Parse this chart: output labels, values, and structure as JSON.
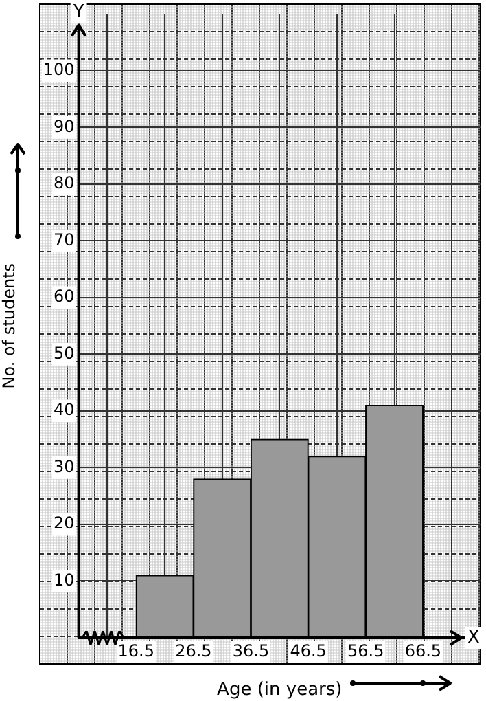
{
  "chart_data": {
    "type": "histogram",
    "xlabel": "Age (in years)",
    "ylabel": "No. of students",
    "bins": [
      16.5,
      26.5,
      36.5,
      46.5,
      56.5,
      66.5
    ],
    "values": [
      11,
      28,
      35,
      32,
      41
    ],
    "color": "#999999",
    "xlim": [
      6.5,
      76.5
    ],
    "ylim": [
      0,
      110
    ],
    "xticks": [
      16.5,
      26.5,
      36.5,
      46.5,
      56.5,
      66.5
    ],
    "yticks": [
      10,
      20,
      30,
      40,
      50,
      60,
      70,
      80,
      90,
      100
    ],
    "annotations": [
      "X",
      "Y"
    ],
    "grid": true
  }
}
